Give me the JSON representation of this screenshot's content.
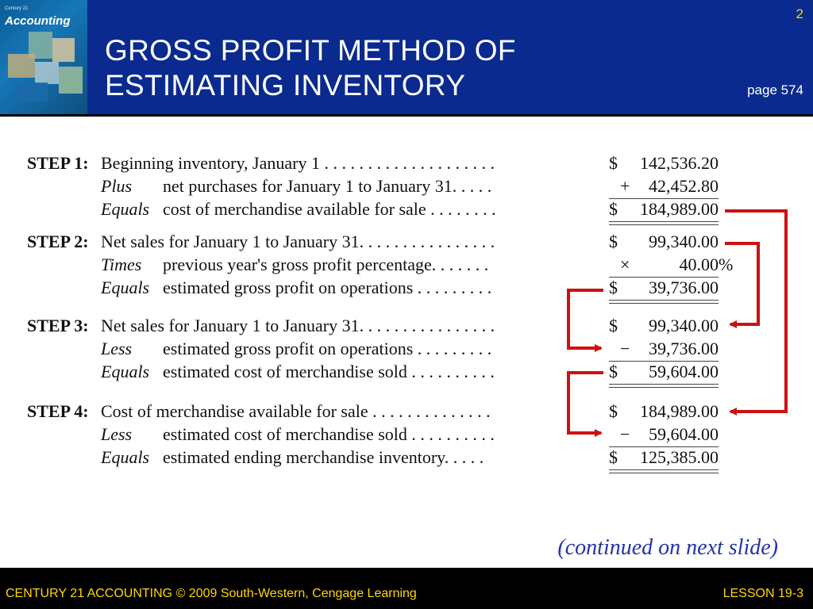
{
  "header": {
    "title_line1": "GROSS PROFIT METHOD OF",
    "title_line2": "ESTIMATING INVENTORY",
    "slide_number": "2",
    "page_ref": "page 574",
    "cover_label": "Accounting",
    "cover_small_text": "Century 21"
  },
  "steps": [
    {
      "step": "STEP 1:",
      "rows": [
        {
          "lead": "",
          "text": "Beginning inventory, January 1 . . . . . . . . . . . . . . . . . . . .",
          "currency": "$",
          "op": "",
          "amount": "142,536.20"
        },
        {
          "lead": "Plus",
          "text": "net purchases for January 1 to January 31. . . . .",
          "currency": "",
          "op": "+",
          "amount": "42,452.80"
        },
        {
          "lead": "Equals",
          "text": "cost of merchandise available for sale . . . . . . . .",
          "currency": "$",
          "op": "",
          "amount": "184,989.00"
        }
      ]
    },
    {
      "step": "STEP 2:",
      "rows": [
        {
          "lead": "",
          "text": "Net sales for January 1 to January 31. . . . . . . . . . . . . . . .",
          "currency": "$",
          "op": "",
          "amount": "99,340.00"
        },
        {
          "lead": "Times",
          "text": "previous year's gross profit percentage. . . . . . .",
          "currency": "",
          "op": "×",
          "amount": "40.00",
          "suffix": "%"
        },
        {
          "lead": "Equals",
          "text": "estimated gross profit on operations . . . . . . . . .",
          "currency": "$",
          "op": "",
          "amount": "39,736.00"
        }
      ]
    },
    {
      "step": "STEP 3:",
      "rows": [
        {
          "lead": "",
          "text": "Net sales for January 1 to January 31. . . . . . . . . . . . . . . .",
          "currency": "$",
          "op": "",
          "amount": "99,340.00"
        },
        {
          "lead": "Less",
          "text": "estimated gross profit on operations . . . . . . . . .",
          "currency": "",
          "op": "−",
          "amount": "39,736.00"
        },
        {
          "lead": "Equals",
          "text": "estimated cost of merchandise sold . . . . . . . . . .",
          "currency": "$",
          "op": "",
          "amount": "59,604.00"
        }
      ]
    },
    {
      "step": "STEP 4:",
      "rows": [
        {
          "lead": "",
          "text": "Cost of merchandise available for sale . . . . . . . . . . . . . .",
          "currency": "$",
          "op": "",
          "amount": "184,989.00"
        },
        {
          "lead": "Less",
          "text": "estimated cost of merchandise sold . . . . . . . . . .",
          "currency": "",
          "op": "−",
          "amount": "59,604.00"
        },
        {
          "lead": "Equals",
          "text": "estimated ending merchandise inventory. . . . .",
          "currency": "$",
          "op": "",
          "amount": "125,385.00"
        }
      ]
    }
  ],
  "continued": "(continued on next slide)",
  "footer": {
    "left": "CENTURY 21 ACCOUNTING © 2009 South-Western, Cengage Learning",
    "right": "LESSON  19-3"
  },
  "colors": {
    "header_bg": "#0a2a8f",
    "arrow": "#cc1111",
    "footer_text": "#ffd700",
    "continued_text": "#2233aa"
  }
}
